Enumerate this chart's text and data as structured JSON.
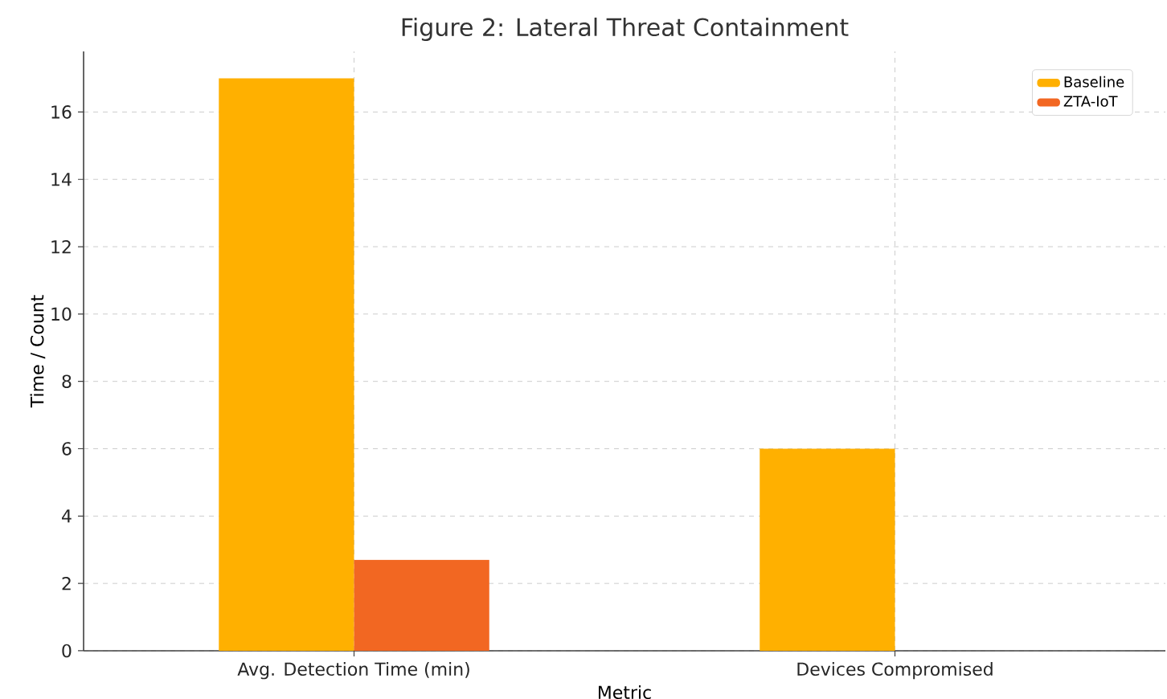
{
  "chart_data": {
    "type": "bar",
    "title": "Figure 2: Lateral Threat Containment",
    "xlabel": "Metric",
    "ylabel": "Time / Count",
    "categories": [
      "Avg. Detection Time (min)",
      "Devices Compromised"
    ],
    "series": [
      {
        "name": "Baseline",
        "color": "#ffb000",
        "values": [
          17,
          6
        ]
      },
      {
        "name": "ZTA-IoT",
        "color": "#f26722",
        "values": [
          2.7,
          0
        ]
      }
    ],
    "ylim": [
      0,
      17.8
    ],
    "yticks": [
      0,
      2,
      4,
      6,
      8,
      10,
      12,
      14,
      16
    ],
    "grid": true,
    "legend": "top right"
  }
}
